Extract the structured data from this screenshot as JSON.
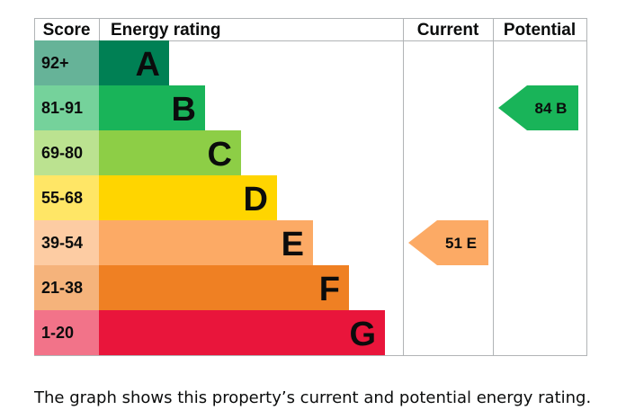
{
  "chart_data": {
    "type": "bar",
    "headers": {
      "score": "Score",
      "rating": "Energy rating",
      "current": "Current",
      "potential": "Potential"
    },
    "bands": [
      {
        "score": "92+",
        "letter": "A",
        "color": "#008054",
        "score_bg": "#66b398"
      },
      {
        "score": "81-91",
        "letter": "B",
        "color": "#19b459",
        "score_bg": "#75d29b"
      },
      {
        "score": "69-80",
        "letter": "C",
        "color": "#8dce46",
        "score_bg": "#bbe290"
      },
      {
        "score": "55-68",
        "letter": "D",
        "color": "#ffd500",
        "score_bg": "#ffe666"
      },
      {
        "score": "39-54",
        "letter": "E",
        "color": "#fcaa65",
        "score_bg": "#fdcca3"
      },
      {
        "score": "21-38",
        "letter": "F",
        "color": "#ef8023",
        "score_bg": "#f5b37b"
      },
      {
        "score": "1-20",
        "letter": "G",
        "color": "#e9153b",
        "score_bg": "#f27389"
      }
    ],
    "current": {
      "value": 51,
      "band": "E",
      "label": "51 E"
    },
    "potential": {
      "value": 84,
      "band": "B",
      "label": "84 B"
    }
  },
  "caption": "The graph shows this property’s current and potential energy rating."
}
